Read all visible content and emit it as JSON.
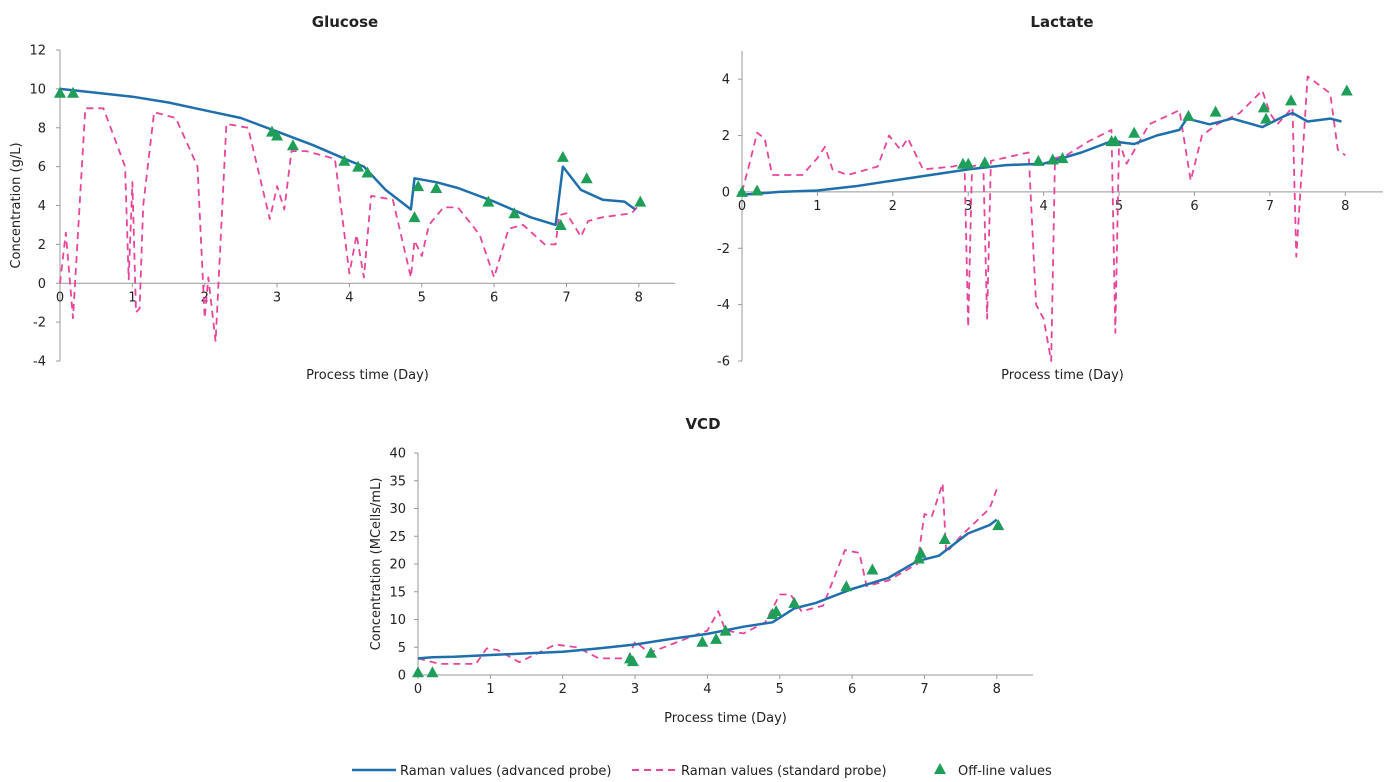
{
  "colors": {
    "advanced": "#1f6fad",
    "standard": "#e8459a",
    "offline": "#1f9e5a"
  },
  "legend": {
    "advanced": "Raman values (advanced probe)",
    "standard": "Raman values (standard probe)",
    "offline": "Off-line values"
  },
  "chart_data": [
    {
      "type": "line",
      "title": "Glucose",
      "xlabel": "Process time (Day)",
      "ylabel": "Concentration (g/L)",
      "xlim": [
        0,
        8.5
      ],
      "ylim": [
        -4,
        12
      ],
      "xticks": [
        0,
        1,
        2,
        3,
        4,
        5,
        6,
        7,
        8
      ],
      "yticks": [
        -4,
        -2,
        0,
        2,
        4,
        6,
        8,
        10,
        12
      ],
      "series": [
        {
          "name": "Raman values (advanced probe)",
          "style": "solid",
          "x": [
            0,
            0.5,
            1,
            1.5,
            2,
            2.5,
            3,
            3.5,
            4,
            4.2,
            4.5,
            4.85,
            4.9,
            5.2,
            5.5,
            6,
            6.5,
            6.85,
            6.95,
            7.2,
            7.5,
            7.8,
            7.95
          ],
          "y": [
            10,
            9.8,
            9.6,
            9.3,
            8.9,
            8.5,
            7.8,
            7.1,
            6.3,
            6.0,
            4.8,
            3.8,
            5.4,
            5.2,
            4.9,
            4.2,
            3.4,
            3.0,
            6.0,
            4.8,
            4.3,
            4.2,
            3.8
          ]
        },
        {
          "name": "Raman values (standard probe)",
          "style": "dashed",
          "x": [
            0,
            0.08,
            0.18,
            0.35,
            0.6,
            0.9,
            0.95,
            1.0,
            1.05,
            1.1,
            1.15,
            1.3,
            1.6,
            1.9,
            2.0,
            2.05,
            2.15,
            2.3,
            2.6,
            2.9,
            3.0,
            3.1,
            3.2,
            3.4,
            3.8,
            4.0,
            4.1,
            4.2,
            4.3,
            4.6,
            4.85,
            4.9,
            5.0,
            5.1,
            5.3,
            5.5,
            5.8,
            6.0,
            6.2,
            6.4,
            6.7,
            6.85,
            6.9,
            7.0,
            7.2,
            7.3,
            7.5,
            7.9,
            8.0
          ],
          "y": [
            0,
            2.6,
            -1.8,
            9.0,
            9.0,
            6.0,
            0.2,
            5.2,
            -1.5,
            -1.3,
            4.0,
            8.8,
            8.5,
            6.0,
            -1.8,
            0.3,
            -3.0,
            8.2,
            8.0,
            3.3,
            5.0,
            3.8,
            6.8,
            6.8,
            6.4,
            0.5,
            2.5,
            0.3,
            4.5,
            4.3,
            0.3,
            2.2,
            1.4,
            3.0,
            3.9,
            3.9,
            2.5,
            0.3,
            2.8,
            3.0,
            2.0,
            2.0,
            3.5,
            3.6,
            2.4,
            3.2,
            3.4,
            3.6,
            4.0
          ]
        },
        {
          "name": "Off-line values",
          "style": "marker",
          "x": [
            0.0,
            0.18,
            2.93,
            3.0,
            3.22,
            3.93,
            4.12,
            4.25,
            4.9,
            4.95,
            5.2,
            5.92,
            6.28,
            6.92,
            6.95,
            7.28,
            8.02
          ],
          "y": [
            9.8,
            9.8,
            7.8,
            7.6,
            7.1,
            6.3,
            6.0,
            5.7,
            3.4,
            5.0,
            4.9,
            4.2,
            3.6,
            3.0,
            6.5,
            5.4,
            4.2
          ]
        }
      ]
    },
    {
      "type": "line",
      "title": "Lactate",
      "xlabel": "Process time (Day)",
      "ylabel": "",
      "xlim": [
        0,
        8.5
      ],
      "ylim": [
        -6,
        5
      ],
      "xticks": [
        0,
        1,
        2,
        3,
        4,
        5,
        6,
        7,
        8
      ],
      "yticks": [
        -6,
        -4,
        -2,
        0,
        2,
        4
      ],
      "series": [
        {
          "name": "Raman values (advanced probe)",
          "style": "solid",
          "x": [
            0,
            0.5,
            1,
            1.5,
            2,
            2.5,
            3,
            3.5,
            4,
            4.5,
            4.9,
            5.2,
            5.5,
            5.8,
            5.9,
            6.2,
            6.5,
            6.9,
            7.2,
            7.3,
            7.5,
            7.8,
            7.95
          ],
          "y": [
            -0.1,
            0.0,
            0.05,
            0.2,
            0.4,
            0.6,
            0.8,
            0.95,
            1.0,
            1.4,
            1.8,
            1.7,
            2.0,
            2.2,
            2.6,
            2.4,
            2.6,
            2.3,
            2.7,
            2.8,
            2.5,
            2.6,
            2.5
          ]
        },
        {
          "name": "Raman values (standard probe)",
          "style": "dashed",
          "x": [
            0,
            0.1,
            0.2,
            0.3,
            0.4,
            0.8,
            1.0,
            1.1,
            1.2,
            1.4,
            1.8,
            1.95,
            2.1,
            2.2,
            2.4,
            2.8,
            2.95,
            3.0,
            3.05,
            3.2,
            3.25,
            3.3,
            3.8,
            3.9,
            4.0,
            4.1,
            4.15,
            4.3,
            4.6,
            4.9,
            4.95,
            5.0,
            5.1,
            5.4,
            5.8,
            5.95,
            6.1,
            6.3,
            6.6,
            6.9,
            7.0,
            7.1,
            7.3,
            7.35,
            7.5,
            7.8,
            7.9,
            8.0
          ],
          "y": [
            0,
            1.0,
            2.1,
            1.9,
            0.6,
            0.6,
            1.2,
            1.6,
            0.8,
            0.6,
            0.9,
            2.0,
            1.5,
            1.9,
            0.8,
            0.9,
            1.0,
            -4.8,
            0.9,
            1.0,
            -4.5,
            1.1,
            1.4,
            -4.0,
            -4.5,
            -6.0,
            1.2,
            1.3,
            1.8,
            2.2,
            -5.0,
            1.8,
            1.0,
            2.4,
            2.9,
            0.4,
            2.0,
            2.4,
            2.8,
            3.6,
            2.8,
            2.4,
            3.0,
            -2.3,
            4.1,
            3.5,
            1.5,
            1.3
          ]
        },
        {
          "name": "Off-line values",
          "style": "marker",
          "x": [
            0.0,
            0.2,
            2.93,
            3.0,
            3.22,
            3.93,
            4.12,
            4.25,
            4.9,
            4.95,
            5.2,
            5.92,
            6.28,
            6.92,
            6.95,
            7.28,
            8.02
          ],
          "y": [
            0.0,
            0.05,
            1.0,
            1.0,
            1.05,
            1.1,
            1.15,
            1.2,
            1.8,
            1.8,
            2.1,
            2.7,
            2.85,
            3.0,
            2.6,
            3.25,
            3.6
          ]
        }
      ]
    },
    {
      "type": "line",
      "title": "VCD",
      "xlabel": "Process time (Day)",
      "ylabel": "Concentration (MCells/mL)",
      "xlim": [
        0,
        8.5
      ],
      "ylim": [
        0,
        40
      ],
      "xticks": [
        0,
        1,
        2,
        3,
        4,
        5,
        6,
        7,
        8
      ],
      "yticks": [
        0,
        5,
        10,
        15,
        20,
        25,
        30,
        35,
        40
      ],
      "series": [
        {
          "name": "Raman values (advanced probe)",
          "style": "solid",
          "x": [
            0,
            0.2,
            0.5,
            1,
            1.5,
            2,
            2.5,
            3,
            3.5,
            4,
            4.5,
            4.9,
            5.2,
            5.5,
            6,
            6.5,
            6.9,
            7.2,
            7.3,
            7.6,
            7.9,
            8.0
          ],
          "y": [
            3.0,
            3.2,
            3.3,
            3.6,
            3.9,
            4.2,
            4.8,
            5.5,
            6.5,
            7.4,
            8.7,
            9.5,
            12.0,
            13.0,
            15.5,
            17.5,
            20.5,
            21.5,
            22.5,
            25.5,
            27.0,
            28.0
          ]
        },
        {
          "name": "Raman values (standard probe)",
          "style": "dashed",
          "x": [
            0,
            0.3,
            0.8,
            0.95,
            1.1,
            1.4,
            1.9,
            2.2,
            2.5,
            2.9,
            3.0,
            3.2,
            3.8,
            4.0,
            4.15,
            4.25,
            4.5,
            4.8,
            5.0,
            5.15,
            5.3,
            5.6,
            5.9,
            6.1,
            6.2,
            6.5,
            6.9,
            7.0,
            7.1,
            7.25,
            7.3,
            7.5,
            7.9,
            8.0
          ],
          "y": [
            3.0,
            2.0,
            2.0,
            4.8,
            4.5,
            2.3,
            5.5,
            5.0,
            3.0,
            3.0,
            6.0,
            4.0,
            7.0,
            8.0,
            11.5,
            8.0,
            7.5,
            9.5,
            14.5,
            14.5,
            11.5,
            12.5,
            22.5,
            22.0,
            16.0,
            17.0,
            20.0,
            29.0,
            28.5,
            34.5,
            22.0,
            25.0,
            30.0,
            33.5
          ]
        },
        {
          "name": "Off-line values",
          "style": "marker",
          "x": [
            0.0,
            0.2,
            2.93,
            2.97,
            3.22,
            3.93,
            4.12,
            4.25,
            4.9,
            4.95,
            5.2,
            5.92,
            6.28,
            6.92,
            6.95,
            7.28,
            8.02
          ],
          "y": [
            0.5,
            0.5,
            3.0,
            2.5,
            4.0,
            6.0,
            6.5,
            8.0,
            11.0,
            11.5,
            13.0,
            16.0,
            19.0,
            21.0,
            22.0,
            24.5,
            27.0
          ]
        }
      ]
    }
  ]
}
